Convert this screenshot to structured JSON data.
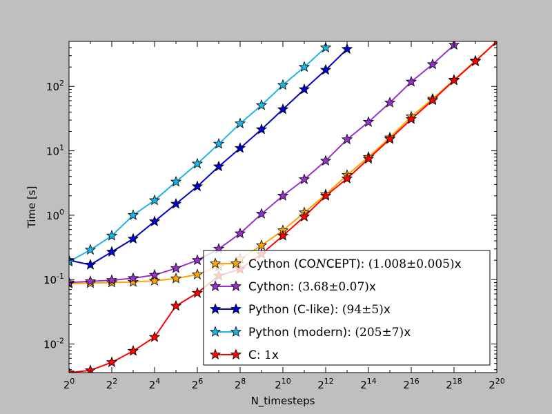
{
  "chart_data": {
    "type": "line",
    "xlabel": "N_timesteps",
    "ylabel": "Time [s]",
    "x_scale": "log2",
    "y_scale": "log10",
    "xlim": [
      1,
      1048576
    ],
    "ylim": [
      0.0036,
      500
    ],
    "grid": false,
    "legend_position": "lower-right",
    "x_ticks": [
      {
        "base": "2",
        "exp": "0"
      },
      {
        "base": "2",
        "exp": "2"
      },
      {
        "base": "2",
        "exp": "4"
      },
      {
        "base": "2",
        "exp": "6"
      },
      {
        "base": "2",
        "exp": "8"
      },
      {
        "base": "2",
        "exp": "10"
      },
      {
        "base": "2",
        "exp": "12"
      },
      {
        "base": "2",
        "exp": "14"
      },
      {
        "base": "2",
        "exp": "16"
      },
      {
        "base": "2",
        "exp": "18"
      },
      {
        "base": "2",
        "exp": "20"
      }
    ],
    "y_ticks": [
      {
        "base": "10",
        "exp": "-2",
        "value": 0.01
      },
      {
        "base": "10",
        "exp": "-1",
        "value": 0.1
      },
      {
        "base": "10",
        "exp": "0",
        "value": 1
      },
      {
        "base": "10",
        "exp": "1",
        "value": 10
      },
      {
        "base": "10",
        "exp": "2",
        "value": 100
      }
    ],
    "series": [
      {
        "name": "Cython (CONCEPT): (1.008±0.005)x",
        "legend_parts": [
          {
            "t": "Cython (CO",
            "math": false
          },
          {
            "t": "N",
            "math": true
          },
          {
            "t": "CEPT): ",
            "math": false
          },
          {
            "t": "(1.008±0.005)",
            "math": true
          },
          {
            "t": "x",
            "math": false
          }
        ],
        "color": "#ffa500",
        "x": [
          1,
          2,
          4,
          8,
          16,
          32,
          64,
          128,
          256,
          512,
          1024,
          2048,
          4096,
          8192,
          16384,
          32768,
          65536,
          131072,
          262144,
          524288,
          1048576
        ],
        "y": [
          0.087,
          0.088,
          0.09,
          0.092,
          0.096,
          0.104,
          0.12,
          0.16,
          0.21,
          0.34,
          0.58,
          1.1,
          2.1,
          4.2,
          8.0,
          16.0,
          34.0,
          64.0,
          126.0,
          250.0,
          500.0
        ]
      },
      {
        "name": "Cython: (3.68±0.07)x",
        "legend_parts": [
          {
            "t": "Cython: ",
            "math": false
          },
          {
            "t": "(3.68±0.07)",
            "math": true
          },
          {
            "t": "x",
            "math": false
          }
        ],
        "color": "#9932cc",
        "x": [
          1,
          2,
          4,
          8,
          16,
          32,
          64,
          128,
          256,
          512,
          1024,
          2048,
          4096,
          8192,
          16384,
          32768,
          65536,
          131072,
          262144
        ],
        "y": [
          0.09,
          0.094,
          0.098,
          0.105,
          0.118,
          0.15,
          0.2,
          0.3,
          0.52,
          1.05,
          2.0,
          3.6,
          7.0,
          15.0,
          28.0,
          56.0,
          118.0,
          220.0,
          440.0
        ]
      },
      {
        "name": "Python (C-like): (94±5)x",
        "legend_parts": [
          {
            "t": "Python (C-like): ",
            "math": false
          },
          {
            "t": "(94±5)",
            "math": true
          },
          {
            "t": "x",
            "math": false
          }
        ],
        "color": "#0000cd",
        "x": [
          1,
          2,
          4,
          8,
          16,
          32,
          64,
          128,
          256,
          512,
          1024,
          2048,
          4096,
          8192
        ],
        "y": [
          0.2,
          0.17,
          0.27,
          0.43,
          0.8,
          1.5,
          2.8,
          5.7,
          11.0,
          21.5,
          44.0,
          90.0,
          180.0,
          380.0
        ]
      },
      {
        "name": "Python (modern): (205±7)x",
        "legend_parts": [
          {
            "t": "Python (modern): ",
            "math": false
          },
          {
            "t": "(205±7)",
            "math": true
          },
          {
            "t": "x",
            "math": false
          }
        ],
        "color": "#1eb4e6",
        "x": [
          1,
          2,
          4,
          8,
          16,
          32,
          64,
          128,
          256,
          512,
          1024,
          2048,
          4096
        ],
        "y": [
          0.19,
          0.29,
          0.48,
          1.0,
          1.7,
          3.3,
          6.3,
          12.8,
          26.5,
          51.0,
          105.0,
          200.0,
          400.0
        ]
      },
      {
        "name": "C: 1x",
        "legend_parts": [
          {
            "t": "C: ",
            "math": false
          },
          {
            "t": "1",
            "math": true
          },
          {
            "t": "x",
            "math": false
          }
        ],
        "color": "#ff0000",
        "x": [
          1,
          2,
          4,
          8,
          16,
          32,
          64,
          128,
          256,
          512,
          1024,
          2048,
          4096,
          8192,
          16384,
          32768,
          65536,
          131072,
          262144,
          524288,
          1048576
        ],
        "y": [
          0.0036,
          0.0039,
          0.0052,
          0.0078,
          0.0128,
          0.039,
          0.062,
          0.115,
          0.145,
          0.25,
          0.48,
          0.95,
          2.0,
          3.7,
          7.5,
          15.2,
          31.0,
          61.0,
          124.0,
          245.0,
          500.0
        ]
      }
    ]
  }
}
